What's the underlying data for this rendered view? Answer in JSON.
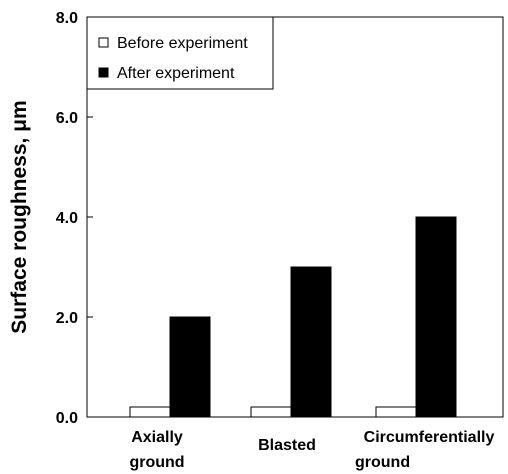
{
  "chart_data": {
    "type": "bar",
    "ylabel": "Surface roughness, μm",
    "xlabel": "",
    "ylim": [
      0,
      8
    ],
    "y_ticks": [
      "0.0",
      "2.0",
      "4.0",
      "6.0",
      "8.0"
    ],
    "categories": [
      [
        "Axially",
        "ground"
      ],
      [
        "Blasted"
      ],
      [
        "Circumferentially",
        "ground"
      ]
    ],
    "series": [
      {
        "name": "Before experiment",
        "values": [
          0.2,
          0.2,
          0.2
        ],
        "fill": "#ffffff"
      },
      {
        "name": "After experiment",
        "values": [
          2.0,
          3.0,
          4.0
        ],
        "fill": "#000000"
      }
    ],
    "grid": false,
    "legend_position": "top-left"
  }
}
